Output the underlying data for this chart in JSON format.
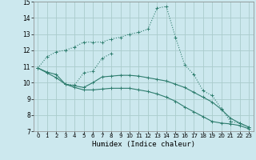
{
  "xlabel": "Humidex (Indice chaleur)",
  "bg_color": "#cce8ee",
  "grid_color": "#aacccc",
  "line_color": "#2e7d6e",
  "xlim": [
    -0.5,
    23.5
  ],
  "ylim": [
    7,
    15
  ],
  "xticks": [
    0,
    1,
    2,
    3,
    4,
    5,
    6,
    7,
    8,
    9,
    10,
    11,
    12,
    13,
    14,
    15,
    16,
    17,
    18,
    19,
    20,
    21,
    22,
    23
  ],
  "yticks": [
    7,
    8,
    9,
    10,
    11,
    12,
    13,
    14,
    15
  ],
  "series1_x": [
    0,
    1,
    2,
    3,
    4,
    5,
    6,
    7,
    8,
    9,
    10,
    11,
    12,
    13,
    14,
    15,
    16,
    17,
    18,
    19,
    20,
    21,
    22,
    23
  ],
  "series1_y": [
    10.9,
    11.6,
    11.9,
    12.0,
    12.2,
    12.5,
    12.5,
    12.5,
    12.7,
    12.8,
    13.0,
    13.1,
    13.3,
    14.6,
    14.7,
    12.8,
    11.1,
    10.5,
    9.5,
    9.2,
    8.4,
    7.6,
    7.5,
    7.25
  ],
  "series2_x": [
    0,
    1,
    2,
    3,
    5,
    6,
    7,
    8,
    9,
    10,
    11,
    12,
    13,
    14,
    15,
    16,
    17,
    18,
    19,
    20,
    21,
    22,
    23
  ],
  "series2_y": [
    10.9,
    10.65,
    10.5,
    9.9,
    9.7,
    10.0,
    10.35,
    10.4,
    10.45,
    10.45,
    10.4,
    10.3,
    10.2,
    10.1,
    9.9,
    9.7,
    9.4,
    9.1,
    8.8,
    8.35,
    7.8,
    7.5,
    7.25
  ],
  "series3_x": [
    3,
    4,
    5,
    6,
    7,
    8
  ],
  "series3_y": [
    9.9,
    9.85,
    10.6,
    10.7,
    11.5,
    11.8
  ],
  "series4_x": [
    0,
    1,
    2,
    3,
    4,
    5,
    6,
    7,
    8,
    9,
    10,
    11,
    12,
    13,
    14,
    15,
    16,
    17,
    18,
    19,
    20,
    21,
    22,
    23
  ],
  "series4_y": [
    10.9,
    10.6,
    10.3,
    9.9,
    9.7,
    9.55,
    9.55,
    9.6,
    9.65,
    9.65,
    9.65,
    9.55,
    9.45,
    9.3,
    9.1,
    8.85,
    8.5,
    8.2,
    7.9,
    7.6,
    7.5,
    7.45,
    7.35,
    7.15
  ]
}
